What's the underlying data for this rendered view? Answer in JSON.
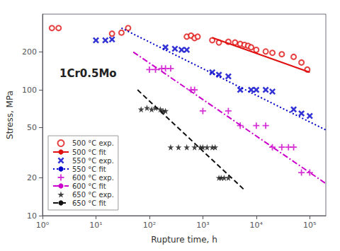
{
  "chart_data": {
    "type": "scatter",
    "title": "1Cr0.5Mo",
    "x_label": "Rupture time, h",
    "y_label": "Stress, MPa",
    "log": true,
    "grid": false,
    "legend": "lower left",
    "xlim": [
      1,
      200000
    ],
    "ylim": [
      10,
      400
    ],
    "xticks": [
      {
        "value": 1,
        "label": "10⁰"
      },
      {
        "value": 10,
        "label": "10¹"
      },
      {
        "value": 100,
        "label": "10²"
      },
      {
        "value": 1000,
        "label": "10³"
      },
      {
        "value": 10000,
        "label": "10⁴"
      },
      {
        "value": 100000,
        "label": "10⁵"
      }
    ],
    "yticks": [
      10,
      20,
      50,
      100,
      200
    ],
    "series": [
      {
        "name": "500 °C exp.",
        "type": "scatter",
        "color": "#e01010",
        "marker": "circle",
        "x": [
          1.5,
          2.0,
          20.0,
          30.0,
          40.0,
          500.0,
          600.0,
          700.0,
          800.0,
          1500.0,
          2000.0,
          3000.0,
          4000.0,
          5000.0,
          6000.0,
          7000.0,
          8000.0,
          10000.0,
          15000.0,
          20000.0,
          30000.0,
          50000.0,
          70000.0,
          90000.0
        ],
        "values": [
          310.0,
          310.0,
          280.0,
          285.0,
          310.0,
          265.0,
          270.0,
          258.0,
          265.0,
          248.0,
          238.0,
          241.0,
          238.0,
          232.0,
          228.0,
          224.0,
          218.0,
          208.0,
          202.0,
          197.0,
          192.0,
          183.0,
          165.0,
          145.0
        ]
      },
      {
        "name": "500 °C fit",
        "type": "line",
        "color": "#e01010",
        "line_style": "solid",
        "x": [
          1500.0,
          100000.0
        ],
        "values": [
          260.0,
          138.0
        ]
      },
      {
        "name": "550 °C exp.",
        "type": "scatter",
        "color": "#0000cc",
        "marker": "x",
        "x": [
          10.0,
          15.0,
          20.0,
          200.0,
          300.0,
          400.0,
          500.0,
          1500.0,
          2000.0,
          3000.0,
          5000.0,
          8000.0,
          10000.0,
          15000.0,
          20000.0,
          50000.0,
          70000.0,
          100000.0
        ],
        "values": [
          248.0,
          248.0,
          252.0,
          218.0,
          212.0,
          208.0,
          208.0,
          138.0,
          132.0,
          128.0,
          100.0,
          100.0,
          100.0,
          100.0,
          97.0,
          70.0,
          65.0,
          62.0
        ]
      },
      {
        "name": "550 °C fit",
        "type": "line",
        "color": "#0000cc",
        "line_style": "dotted",
        "x": [
          30.0,
          200000.0
        ],
        "values": [
          310.0,
          48.0
        ]
      },
      {
        "name": "600 °C exp.",
        "type": "scatter",
        "color": "#cc00cc",
        "marker": "plus",
        "x": [
          100.0,
          130.0,
          170.0,
          200.0,
          250.0,
          600.0,
          700.0,
          1000.0,
          3000.0,
          5000.0,
          10000.0,
          15000.0,
          20000.0,
          30000.0,
          40000.0,
          50000.0,
          70000.0,
          100000.0
        ],
        "values": [
          145.0,
          145.0,
          148.0,
          148.0,
          148.0,
          100.0,
          100.0,
          68.0,
          68.0,
          52.0,
          52.0,
          52.0,
          35.0,
          35.0,
          35.0,
          35.0,
          22.0,
          22.0
        ]
      },
      {
        "name": "600 °C fit",
        "type": "line",
        "color": "#cc00cc",
        "line_style": "dashdot",
        "x": [
          50.0,
          200000.0
        ],
        "values": [
          200.0,
          18.0
        ]
      },
      {
        "name": "650 °C exp.",
        "type": "scatter",
        "color": "#111111",
        "marker": "star",
        "x": [
          70.0,
          90.0,
          110.0,
          130.0,
          160.0,
          180.0,
          200.0,
          250.0,
          350.0,
          500.0,
          700.0,
          900.0,
          1000.0,
          1200.0,
          1500.0,
          1700.0,
          2000.0,
          2200.0,
          2500.0,
          3000.0
        ],
        "values": [
          70.0,
          72.0,
          70.0,
          72.0,
          70.0,
          68.0,
          68.0,
          35.0,
          35.0,
          35.0,
          35.0,
          35.0,
          35.0,
          35.0,
          35.0,
          35.0,
          20.0,
          20.0,
          20.0,
          20.0
        ]
      },
      {
        "name": "650 °C fit",
        "type": "line",
        "color": "#111111",
        "line_style": "dashed",
        "x": [
          60.0,
          6000.0
        ],
        "values": [
          100.0,
          16.0
        ]
      }
    ]
  }
}
